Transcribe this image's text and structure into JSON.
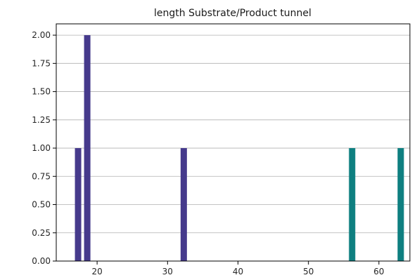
{
  "chart_data": {
    "type": "bar",
    "title": "length Substrate/Product tunnel",
    "xlabel": "",
    "ylabel": "",
    "xlim": [
      14.2,
      64.4
    ],
    "ylim": [
      0,
      2.1
    ],
    "grid": "y",
    "x_ticks": [
      20,
      30,
      40,
      50,
      60
    ],
    "y_ticks": [
      0,
      0.25,
      0.5,
      0.75,
      1.0,
      1.25,
      1.5,
      1.75,
      2.0
    ],
    "x_tick_labels": [
      "20",
      "30",
      "40",
      "50",
      "60"
    ],
    "y_tick_labels": [
      "0.00",
      "0.25",
      "0.50",
      "0.75",
      "1.00",
      "1.25",
      "1.50",
      "1.75",
      "2.00"
    ],
    "bar_width": 0.9,
    "bars": [
      {
        "x": 17.3,
        "value": 1,
        "color": "#463a8c"
      },
      {
        "x": 18.6,
        "value": 2,
        "color": "#463a8c"
      },
      {
        "x": 32.3,
        "value": 1,
        "color": "#463a8c"
      },
      {
        "x": 56.2,
        "value": 1,
        "color": "#0e7f80"
      },
      {
        "x": 63.1,
        "value": 1,
        "color": "#0e7f80"
      }
    ]
  }
}
